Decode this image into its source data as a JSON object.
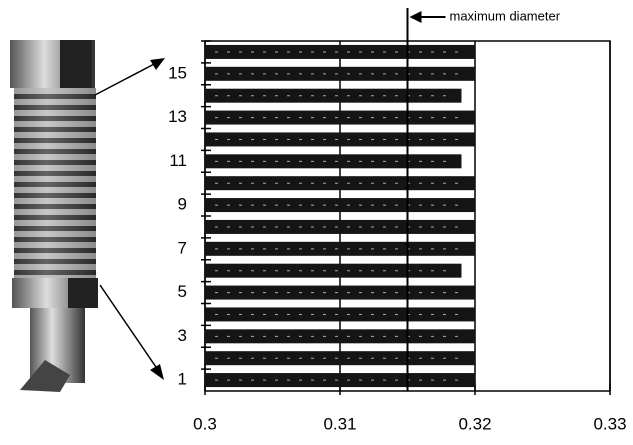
{
  "chart_data": {
    "type": "barh",
    "categories": [
      "1",
      null,
      "3",
      null,
      "5",
      null,
      "7",
      null,
      "9",
      null,
      "11",
      null,
      "13",
      null,
      "15",
      null
    ],
    "values": [
      0.32,
      0.32,
      0.32,
      0.32,
      0.32,
      0.319,
      0.32,
      0.32,
      0.32,
      0.32,
      0.319,
      0.32,
      0.32,
      0.319,
      0.32,
      0.32
    ],
    "color": "#151515",
    "xlim": [
      0.3,
      0.33
    ],
    "xticks": [
      0.3,
      0.31,
      0.32,
      0.33
    ],
    "grid": true,
    "annotation": {
      "text": "maximum diameter",
      "x": 0.315
    }
  }
}
